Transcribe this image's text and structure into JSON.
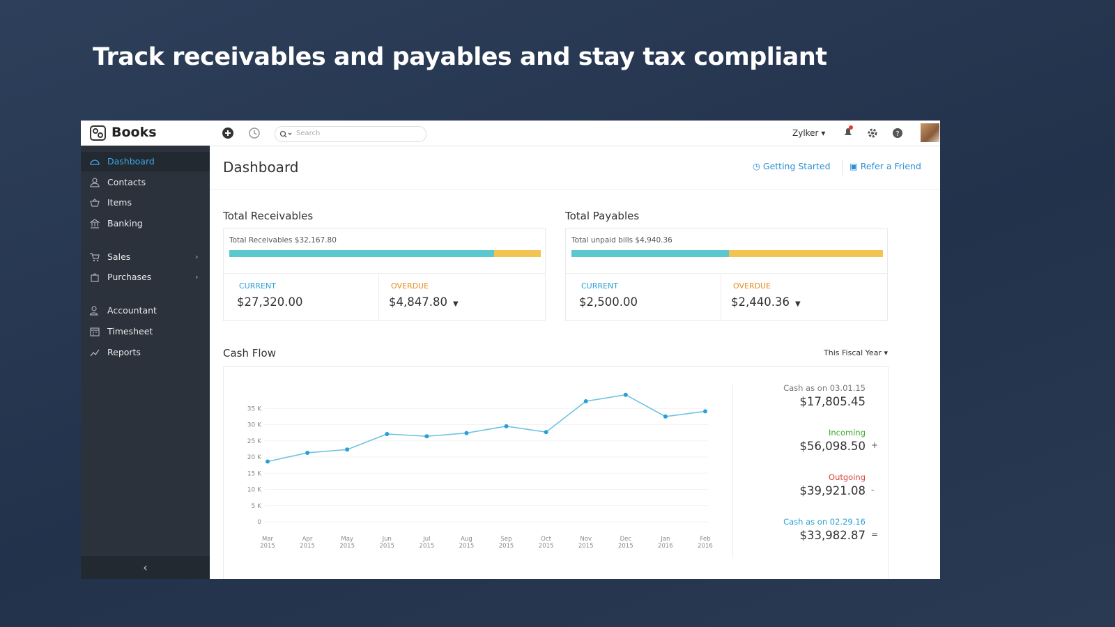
{
  "headline": "Track receivables and payables and stay tax compliant",
  "app": {
    "brand": "Books",
    "search_placeholder": "Search",
    "org": "Zylker"
  },
  "sidebar": {
    "items": [
      "Dashboard",
      "Contacts",
      "Items",
      "Banking",
      "Sales",
      "Purchases",
      "Accountant",
      "Timesheet",
      "Reports"
    ]
  },
  "page": {
    "title": "Dashboard",
    "links": [
      "Getting Started",
      "Refer a Friend"
    ]
  },
  "receivables": {
    "title": "Total Receivables",
    "summary": "Total Receivables $32,167.80",
    "current_label": "CURRENT",
    "current": "$27,320.00",
    "overdue_label": "OVERDUE",
    "overdue": "$4,847.80"
  },
  "payables": {
    "title": "Total Payables",
    "summary": "Total unpaid bills $4,940.36",
    "current_label": "CURRENT",
    "current": "$2,500.00",
    "overdue_label": "OVERDUE",
    "overdue": "$2,440.36"
  },
  "cash_flow": {
    "title": "Cash Flow",
    "period": "This Fiscal Year",
    "summary": [
      {
        "label": "Cash as on 03.01.15",
        "amount": "$17,805.45",
        "sign": ""
      },
      {
        "label": "Incoming",
        "amount": "$56,098.50",
        "sign": "+"
      },
      {
        "label": "Outgoing",
        "amount": "$39,921.08",
        "sign": "-"
      },
      {
        "label": "Cash as on 02.29.16",
        "amount": "$33,982.87",
        "sign": "="
      }
    ]
  },
  "chart_data": {
    "type": "line",
    "categories": [
      "Mar 2015",
      "Apr 2015",
      "May 2015",
      "Jun 2015",
      "Jul 2015",
      "Aug 2015",
      "Sep 2015",
      "Oct 2015",
      "Nov 2015",
      "Dec 2015",
      "Jan 2016",
      "Feb 2016"
    ],
    "series": [
      {
        "name": "Cash",
        "color": "#6fc3e0",
        "values": [
          18600,
          21300,
          22300,
          27100,
          26400,
          27400,
          29500,
          27700,
          37200,
          39200,
          32500,
          34100
        ]
      }
    ],
    "ylim": [
      0,
      40000
    ],
    "yticks": [
      0,
      {
        "value": 5000,
        "label": "5 K"
      },
      {
        "value": 10000,
        "label": "10 K"
      },
      {
        "value": 15000,
        "label": "15 K"
      },
      {
        "value": 20000,
        "label": "20 K"
      },
      {
        "value": 25000,
        "label": "25 K"
      },
      {
        "value": 30000,
        "label": "30 K"
      },
      {
        "value": 35000,
        "label": "35 K"
      }
    ],
    "grid": true
  }
}
